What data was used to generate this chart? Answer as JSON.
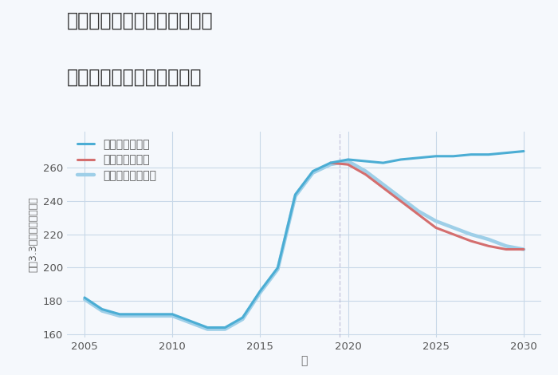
{
  "title_line1": "神奈川県横浜市中区吉田町の",
  "title_line2": "中古マンションの価格推移",
  "xlabel": "年",
  "ylabel": "坪（3.3㎡）単価（万円）",
  "background_color": "#f5f8fc",
  "xlim": [
    2004,
    2031
  ],
  "ylim": [
    158,
    282
  ],
  "yticks": [
    160,
    180,
    200,
    220,
    240,
    260
  ],
  "xticks": [
    2005,
    2010,
    2015,
    2020,
    2025,
    2030
  ],
  "grid_color": "#c8d8e8",
  "scenarios": {
    "good": {
      "label": "グッドシナリオ",
      "color": "#4badd4",
      "linewidth": 2.2,
      "years": [
        2005,
        2006,
        2007,
        2008,
        2009,
        2010,
        2011,
        2012,
        2013,
        2014,
        2015,
        2016,
        2017,
        2018,
        2019,
        2020,
        2021,
        2022,
        2023,
        2024,
        2025,
        2026,
        2027,
        2028,
        2029,
        2030
      ],
      "values": [
        182,
        175,
        172,
        172,
        172,
        172,
        168,
        164,
        164,
        170,
        186,
        200,
        244,
        258,
        263,
        265,
        264,
        263,
        265,
        266,
        267,
        267,
        268,
        268,
        269,
        270
      ]
    },
    "bad": {
      "label": "バッドシナリオ",
      "color": "#d46e6e",
      "linewidth": 2.2,
      "years": [
        2019,
        2020,
        2021,
        2022,
        2023,
        2024,
        2025,
        2026,
        2027,
        2028,
        2029,
        2030
      ],
      "values": [
        263,
        262,
        256,
        248,
        240,
        232,
        224,
        220,
        216,
        213,
        211,
        211
      ]
    },
    "normal": {
      "label": "ノーマルシナリオ",
      "color": "#9ecfe8",
      "linewidth": 3.2,
      "years": [
        2005,
        2006,
        2007,
        2008,
        2009,
        2010,
        2011,
        2012,
        2013,
        2014,
        2015,
        2016,
        2017,
        2018,
        2019,
        2020,
        2021,
        2022,
        2023,
        2024,
        2025,
        2026,
        2027,
        2028,
        2029,
        2030
      ],
      "values": [
        181,
        174,
        171,
        171,
        171,
        171,
        167,
        163,
        163,
        169,
        185,
        199,
        243,
        257,
        262,
        264,
        258,
        250,
        242,
        234,
        228,
        224,
        220,
        217,
        213,
        211
      ]
    }
  },
  "legend_fontsize": 10,
  "title_fontsize": 17,
  "title_color": "#333333",
  "tick_color": "#555555",
  "axis_label_color": "#666666",
  "vline_x": 2019.5,
  "vline_color": "#aaaacc",
  "vline_style": "--",
  "vline_alpha": 0.6
}
